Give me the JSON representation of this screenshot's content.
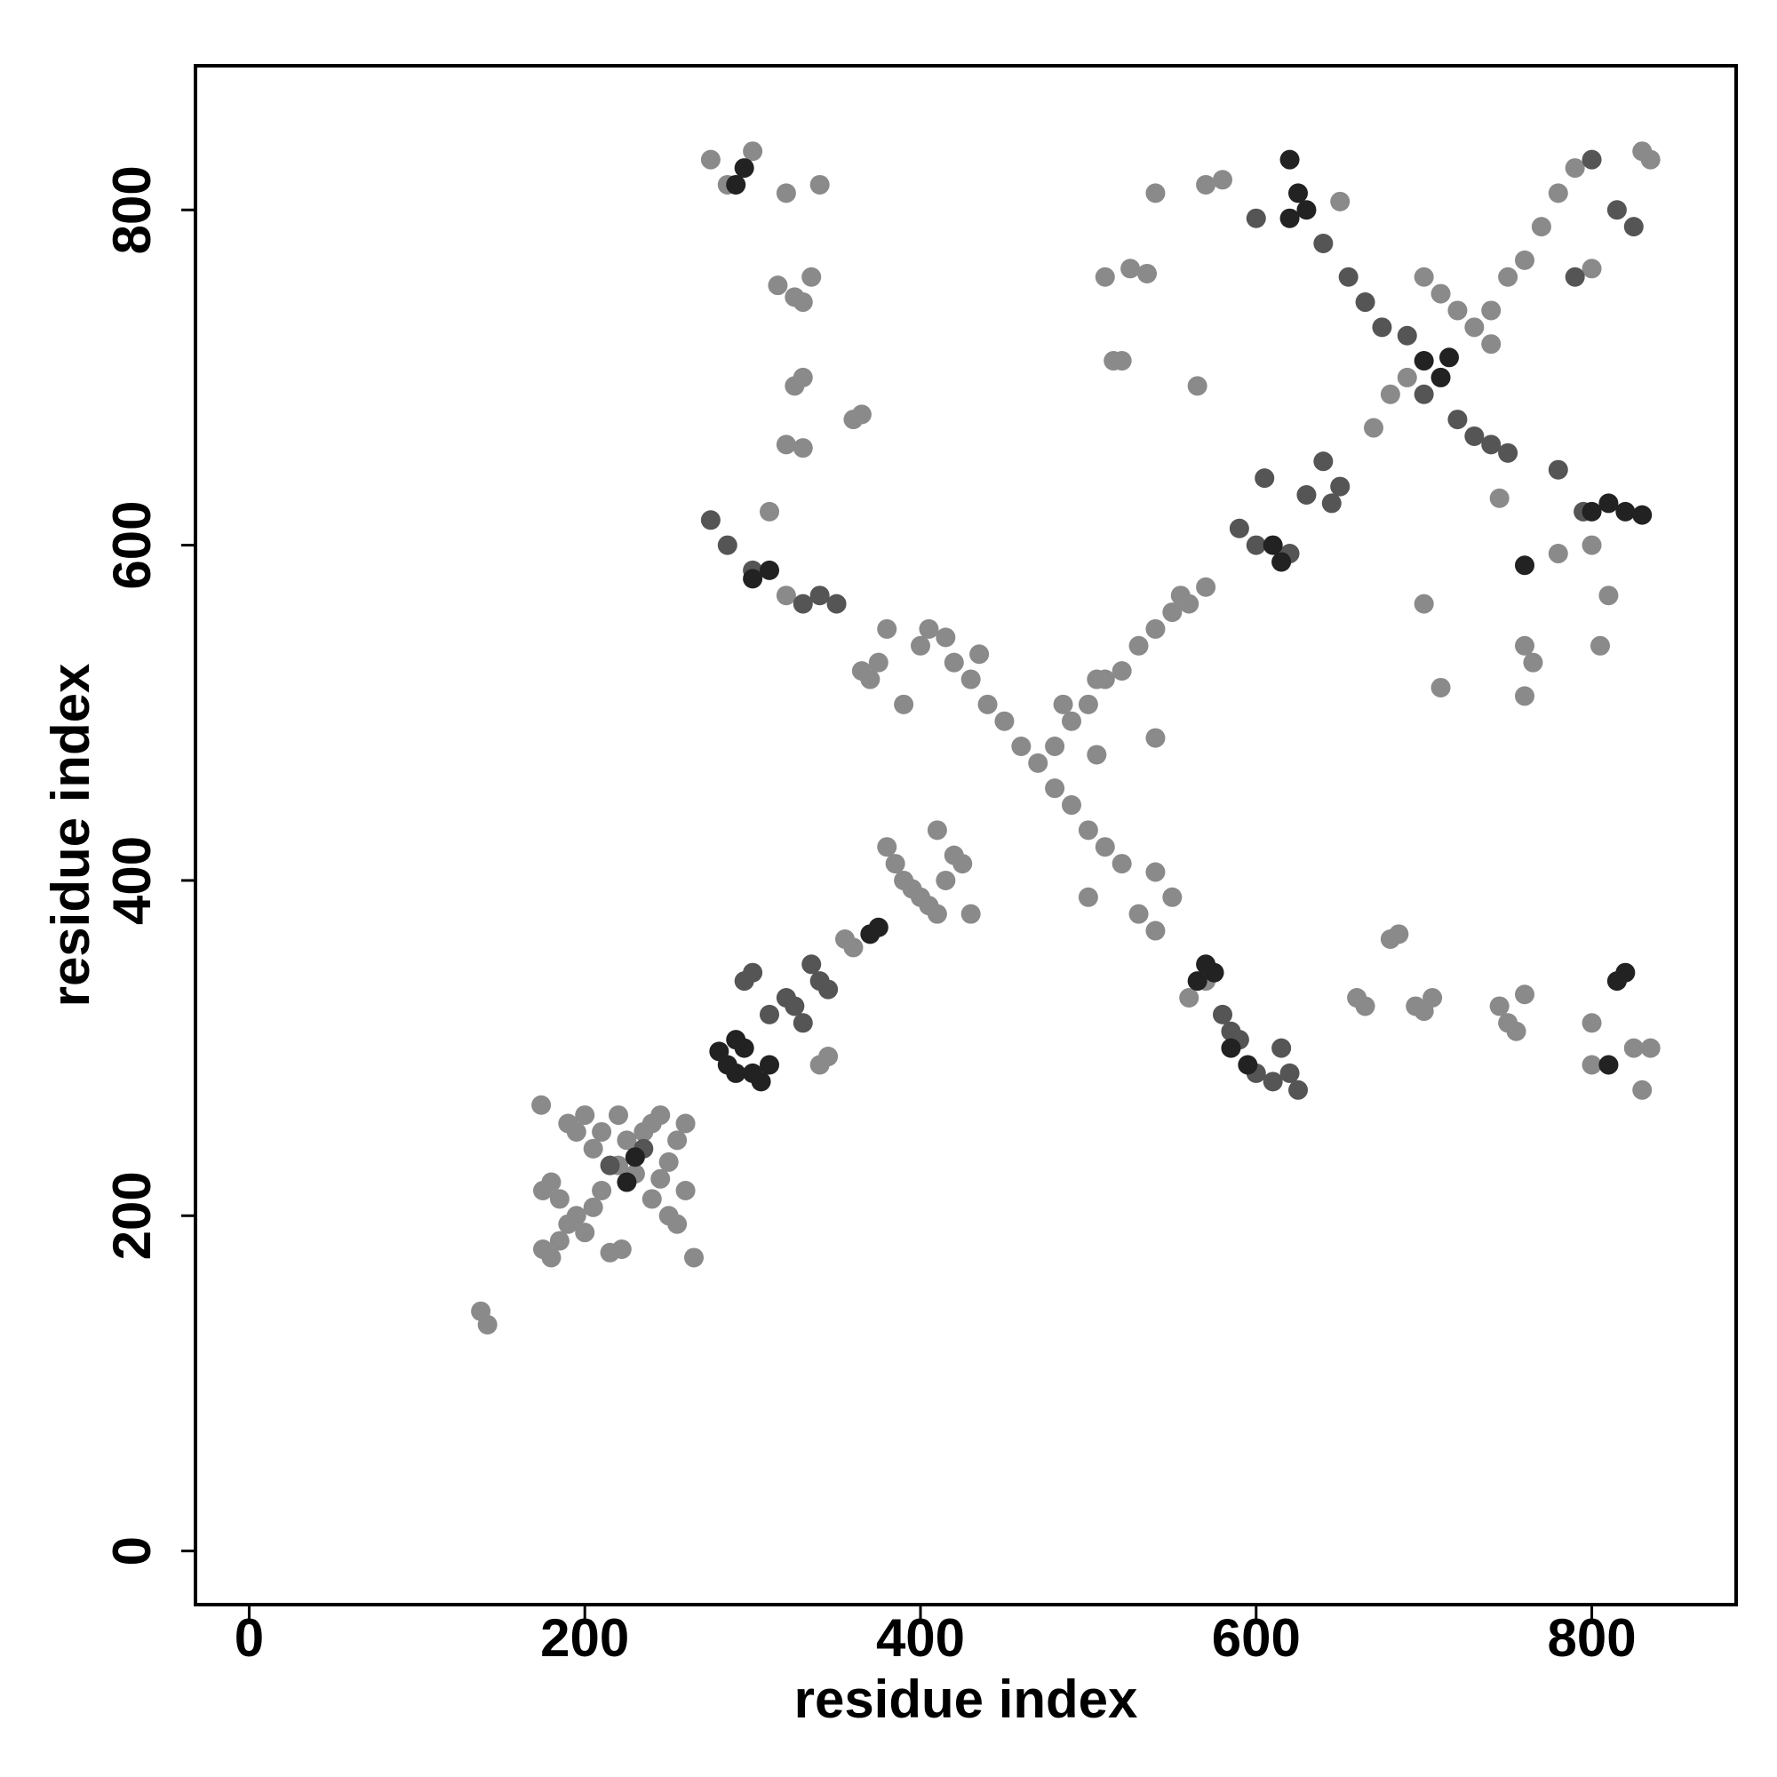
{
  "chart_data": {
    "type": "scatter",
    "x_label": "residue index",
    "y_label": "residue index",
    "xlim": [
      -32,
      886
    ],
    "ylim": [
      -32,
      886
    ],
    "xticks": [
      0,
      200,
      400,
      600,
      800
    ],
    "yticks": [
      0,
      200,
      400,
      600,
      800
    ],
    "series": [
      {
        "color": "#8a8a8a",
        "x": [
          138,
          142,
          175,
          180,
          185,
          190,
          195,
          200,
          205,
          210,
          220,
          225,
          235,
          240,
          245,
          175,
          180,
          185,
          190,
          195,
          200,
          205,
          210,
          220,
          230,
          240,
          250,
          255,
          260,
          265,
          174,
          215,
          222,
          245,
          250,
          255,
          260,
          340,
          345,
          355,
          360,
          380,
          385,
          390,
          395,
          400,
          405,
          410,
          415,
          420,
          410,
          425,
          430,
          380,
          400,
          420,
          430,
          440,
          450,
          460,
          470,
          480,
          490,
          500,
          510,
          520,
          530,
          540,
          550,
          480,
          490,
          500,
          510,
          520,
          530,
          540,
          550,
          560,
          570,
          365,
          370,
          375,
          390,
          405,
          415,
          435,
          275,
          285,
          300,
          320,
          340,
          315,
          325,
          330,
          335,
          325,
          330,
          320,
          330,
          360,
          365,
          310,
          320,
          540,
          570,
          580,
          510,
          525,
          535,
          515,
          520,
          565,
          555,
          650,
          500,
          485,
          505,
          540,
          505,
          540,
          700,
          710,
          720,
          730,
          740,
          750,
          760,
          770,
          780,
          790,
          830,
          835,
          800,
          800,
          780,
          810,
          805,
          760,
          765,
          760,
          710,
          700,
          745,
          660,
          665,
          680,
          685,
          695,
          700,
          705,
          745,
          750,
          755,
          760,
          800,
          825,
          830,
          835,
          800,
          560,
          570,
          680,
          690,
          670,
          740
        ],
        "y": [
          143,
          135,
          180,
          175,
          185,
          195,
          200,
          190,
          205,
          215,
          230,
          245,
          250,
          255,
          260,
          215,
          220,
          210,
          255,
          250,
          260,
          240,
          250,
          260,
          225,
          210,
          200,
          195,
          215,
          175,
          266,
          178,
          180,
          222,
          232,
          245,
          255,
          290,
          295,
          365,
          360,
          420,
          410,
          400,
          395,
          390,
          385,
          380,
          400,
          415,
          430,
          410,
          380,
          550,
          540,
          530,
          520,
          505,
          495,
          480,
          470,
          455,
          445,
          430,
          420,
          410,
          380,
          370,
          390,
          480,
          495,
          505,
          520,
          525,
          540,
          550,
          560,
          565,
          575,
          525,
          520,
          530,
          505,
          550,
          545,
          535,
          830,
          815,
          835,
          810,
          815,
          755,
          748,
          745,
          760,
          695,
          700,
          660,
          658,
          675,
          678,
          620,
          570,
          810,
          815,
          818,
          760,
          765,
          762,
          710,
          710,
          695,
          570,
          805,
          390,
          505,
          475,
          485,
          520,
          405,
          760,
          750,
          740,
          730,
          720,
          760,
          770,
          790,
          810,
          825,
          835,
          830,
          765,
          600,
          595,
          570,
          540,
          540,
          530,
          510,
          515,
          565,
          628,
          330,
          325,
          365,
          368,
          325,
          322,
          330,
          325,
          315,
          310,
          332,
          290,
          300,
          275,
          300,
          315,
          330,
          340,
          690,
          700,
          670,
          740
        ]
      },
      {
        "color": "#555555",
        "x": [
          295,
          300,
          310,
          320,
          325,
          330,
          335,
          340,
          345,
          275,
          285,
          300,
          330,
          340,
          350,
          580,
          590,
          600,
          610,
          620,
          625,
          590,
          600,
          605,
          620,
          630,
          640,
          645,
          650,
          655,
          665,
          675,
          690,
          700,
          720,
          730,
          740,
          750,
          780,
          790,
          800,
          815,
          825,
          600,
          640,
          795,
          585,
          615,
          215,
          235
        ],
        "y": [
          340,
          345,
          320,
          330,
          325,
          315,
          350,
          340,
          335,
          615,
          600,
          585,
          565,
          570,
          565,
          320,
          305,
          285,
          280,
          285,
          275,
          610,
          600,
          640,
          595,
          630,
          650,
          625,
          635,
          760,
          745,
          730,
          725,
          690,
          675,
          665,
          660,
          655,
          645,
          760,
          830,
          800,
          790,
          795,
          780,
          620,
          310,
          300,
          230,
          240
        ]
      },
      {
        "color": "#222222",
        "x": [
          280,
          285,
          290,
          295,
          300,
          305,
          310,
          290,
          225,
          230,
          370,
          375,
          565,
          570,
          575,
          585,
          595,
          620,
          625,
          620,
          630,
          700,
          710,
          715,
          800,
          810,
          820,
          830,
          815,
          820,
          290,
          295,
          300,
          310,
          610,
          615,
          810,
          760
        ],
        "y": [
          298,
          290,
          305,
          300,
          285,
          280,
          290,
          285,
          220,
          235,
          368,
          372,
          340,
          350,
          345,
          300,
          290,
          830,
          810,
          795,
          800,
          710,
          700,
          712,
          620,
          625,
          620,
          618,
          340,
          345,
          815,
          825,
          580,
          585,
          600,
          590,
          290,
          588
        ]
      }
    ]
  }
}
